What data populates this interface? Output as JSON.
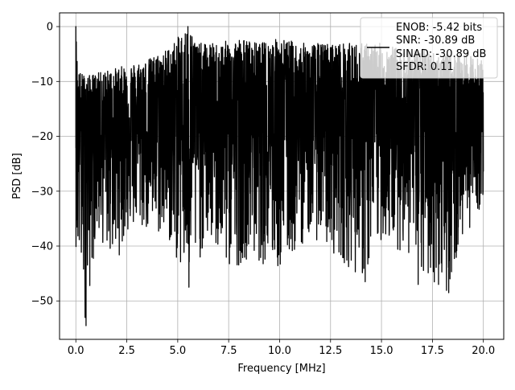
{
  "chart_data": {
    "type": "line",
    "title": "",
    "xlabel": "Frequency [MHz]",
    "ylabel": "PSD [dB]",
    "xlim": [
      -0.8,
      21.0
    ],
    "ylim": [
      -57.0,
      2.5
    ],
    "x_ticks": [
      0.0,
      2.5,
      5.0,
      7.5,
      10.0,
      12.5,
      15.0,
      17.5,
      20.0
    ],
    "x_tick_labels": [
      "0.0",
      "2.5",
      "5.0",
      "7.5",
      "10.0",
      "12.5",
      "15.0",
      "17.5",
      "20.0"
    ],
    "y_ticks": [
      0,
      -10,
      -20,
      -30,
      -40,
      -50
    ],
    "y_tick_labels": [
      "0",
      "−10",
      "−20",
      "−30",
      "−40",
      "−50"
    ],
    "grid": true,
    "legend_position": "top-right",
    "line_color": "#000000",
    "series": [
      {
        "name": "ENOB: -5.42 bits\nSNR: -30.89 dB\nSINAD: -30.89 dB\nSFDR: 0.11",
        "legend_lines": [
          "ENOB: -5.42 bits",
          "SNR: -30.89 dB",
          "SINAD: -30.89 dB",
          "SFDR: 0.11"
        ],
        "x_range": [
          0.0,
          20.0
        ],
        "upper_envelope": [
          [
            0.0,
            0
          ],
          [
            0.1,
            -8
          ],
          [
            0.5,
            -9
          ],
          [
            1.5,
            -8
          ],
          [
            2.5,
            -7
          ],
          [
            3.5,
            -6
          ],
          [
            4.5,
            -4
          ],
          [
            5.5,
            0
          ],
          [
            6.0,
            -3
          ],
          [
            7.0,
            -3
          ],
          [
            8.0,
            -2
          ],
          [
            9.0,
            -3
          ],
          [
            10.0,
            -2
          ],
          [
            11.0,
            -3
          ],
          [
            12.0,
            -3
          ],
          [
            13.0,
            -3
          ],
          [
            14.0,
            -3
          ],
          [
            15.0,
            -3
          ],
          [
            16.0,
            -4
          ],
          [
            17.0,
            -4
          ],
          [
            18.0,
            -5
          ],
          [
            19.0,
            -5
          ],
          [
            20.0,
            -6
          ]
        ],
        "lower_envelope": [
          [
            0.0,
            -40
          ],
          [
            0.5,
            -54.5
          ],
          [
            1.0,
            -38
          ],
          [
            1.5,
            -41
          ],
          [
            2.0,
            -43
          ],
          [
            2.5,
            -38
          ],
          [
            3.0,
            -37
          ],
          [
            4.5,
            -39
          ],
          [
            5.5,
            -47.5
          ],
          [
            6.5,
            -39
          ],
          [
            7.5,
            -45
          ],
          [
            8.5,
            -42
          ],
          [
            10.0,
            -45
          ],
          [
            11.5,
            -38
          ],
          [
            12.5,
            -41
          ],
          [
            14.2,
            -46.5
          ],
          [
            15.0,
            -39
          ],
          [
            16.5,
            -42
          ],
          [
            16.8,
            -47
          ],
          [
            17.8,
            -47
          ],
          [
            18.3,
            -48.5
          ],
          [
            19.0,
            -39
          ],
          [
            20.0,
            -32
          ]
        ],
        "spikes": [
          [
            0.0,
            0
          ],
          [
            0.5,
            -54.5
          ],
          [
            5.5,
            0
          ],
          [
            5.55,
            -47.5
          ],
          [
            14.2,
            -46.5
          ],
          [
            16.8,
            -47
          ],
          [
            17.8,
            -47
          ],
          [
            18.3,
            -48.5
          ]
        ]
      }
    ]
  }
}
